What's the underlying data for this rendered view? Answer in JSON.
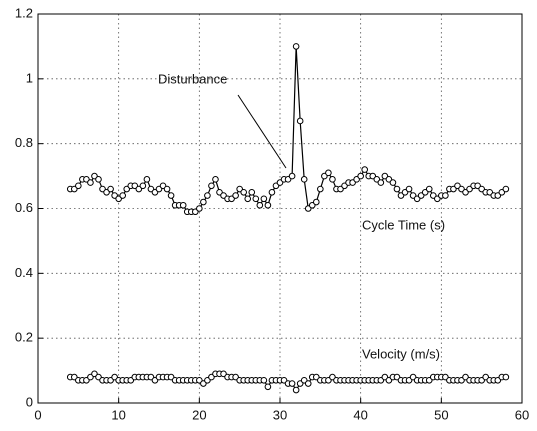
{
  "chart_data": {
    "type": "line",
    "x": [
      4,
      4.5,
      5,
      5.5,
      6,
      6.5,
      7,
      7.5,
      8,
      8.5,
      9,
      9.5,
      10,
      10.5,
      11,
      11.5,
      12,
      12.5,
      13,
      13.5,
      14,
      14.5,
      15,
      15.5,
      16,
      16.5,
      17,
      17.5,
      18,
      18.5,
      19,
      19.5,
      20,
      20.5,
      21,
      21.5,
      22,
      22.5,
      23,
      23.5,
      24,
      24.5,
      25,
      25.5,
      26,
      26.5,
      27,
      27.5,
      28,
      28.5,
      29,
      29.5,
      30,
      30.5,
      31,
      31.5,
      32,
      32.5,
      33,
      33.5,
      34,
      34.5,
      35,
      35.5,
      36,
      36.5,
      37,
      37.5,
      38,
      38.5,
      39,
      39.5,
      40,
      40.5,
      41,
      41.5,
      42,
      42.5,
      43,
      43.5,
      44,
      44.5,
      45,
      45.5,
      46,
      46.5,
      47,
      47.5,
      48,
      48.5,
      49,
      49.5,
      50,
      50.5,
      51,
      51.5,
      52,
      52.5,
      53,
      53.5,
      54,
      54.5,
      55,
      55.5,
      56,
      56.5,
      57,
      57.5,
      58
    ],
    "series": [
      {
        "name": "Cycle Time (s)",
        "color": "#000000",
        "values": [
          0.66,
          0.66,
          0.67,
          0.69,
          0.69,
          0.68,
          0.7,
          0.69,
          0.66,
          0.65,
          0.66,
          0.64,
          0.63,
          0.64,
          0.66,
          0.67,
          0.67,
          0.66,
          0.67,
          0.69,
          0.66,
          0.65,
          0.66,
          0.67,
          0.66,
          0.64,
          0.61,
          0.61,
          0.61,
          0.59,
          0.59,
          0.59,
          0.6,
          0.62,
          0.64,
          0.67,
          0.69,
          0.65,
          0.64,
          0.63,
          0.63,
          0.64,
          0.66,
          0.65,
          0.63,
          0.65,
          0.63,
          0.61,
          0.63,
          0.61,
          0.65,
          0.67,
          0.68,
          0.69,
          0.69,
          0.7,
          1.1,
          0.87,
          0.69,
          0.6,
          0.61,
          0.62,
          0.66,
          0.7,
          0.71,
          0.69,
          0.66,
          0.66,
          0.67,
          0.68,
          0.68,
          0.69,
          0.7,
          0.72,
          0.7,
          0.7,
          0.69,
          0.68,
          0.7,
          0.69,
          0.68,
          0.66,
          0.64,
          0.65,
          0.66,
          0.64,
          0.63,
          0.64,
          0.65,
          0.66,
          0.64,
          0.63,
          0.64,
          0.64,
          0.66,
          0.66,
          0.67,
          0.66,
          0.65,
          0.66,
          0.67,
          0.67,
          0.66,
          0.65,
          0.65,
          0.64,
          0.64,
          0.65,
          0.66
        ]
      },
      {
        "name": "Velocity (m/s)",
        "color": "#000000",
        "values": [
          0.08,
          0.08,
          0.07,
          0.07,
          0.07,
          0.08,
          0.09,
          0.08,
          0.07,
          0.07,
          0.07,
          0.08,
          0.07,
          0.07,
          0.07,
          0.07,
          0.08,
          0.08,
          0.08,
          0.08,
          0.08,
          0.07,
          0.08,
          0.08,
          0.08,
          0.08,
          0.07,
          0.07,
          0.07,
          0.07,
          0.07,
          0.07,
          0.07,
          0.06,
          0.07,
          0.08,
          0.09,
          0.09,
          0.09,
          0.08,
          0.08,
          0.08,
          0.07,
          0.07,
          0.07,
          0.07,
          0.07,
          0.07,
          0.07,
          0.05,
          0.07,
          0.07,
          0.07,
          0.07,
          0.06,
          0.06,
          0.04,
          0.06,
          0.07,
          0.06,
          0.08,
          0.08,
          0.07,
          0.07,
          0.07,
          0.08,
          0.07,
          0.07,
          0.07,
          0.07,
          0.07,
          0.07,
          0.07,
          0.07,
          0.07,
          0.07,
          0.07,
          0.07,
          0.08,
          0.07,
          0.08,
          0.08,
          0.07,
          0.07,
          0.07,
          0.08,
          0.07,
          0.07,
          0.07,
          0.07,
          0.08,
          0.08,
          0.08,
          0.08,
          0.07,
          0.07,
          0.07,
          0.07,
          0.08,
          0.07,
          0.07,
          0.07,
          0.07,
          0.08,
          0.07,
          0.07,
          0.07,
          0.08,
          0.08
        ]
      }
    ],
    "annotations": [
      "Disturbance"
    ],
    "xlim": [
      0,
      60
    ],
    "xticks": [
      0,
      10,
      20,
      30,
      40,
      50,
      60
    ],
    "ylim": [
      0,
      1.2
    ],
    "yticks": [
      0,
      0.2,
      0.4,
      0.6,
      0.8,
      1,
      1.2
    ],
    "grid": true
  }
}
